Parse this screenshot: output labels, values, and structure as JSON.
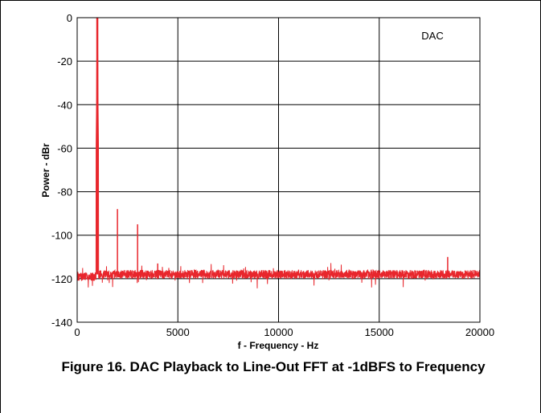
{
  "figure_caption": "Figure 16. DAC Playback to Line-Out FFT at -1dBFS to Frequency",
  "chart_data": {
    "type": "line",
    "title": "",
    "xlabel": "f - Frequency - Hz",
    "ylabel": "Power - dBr",
    "xlim": [
      0,
      20000
    ],
    "ylim": [
      -140,
      0
    ],
    "x_ticks": [
      0,
      5000,
      10000,
      15000,
      20000
    ],
    "y_ticks": [
      0,
      -20,
      -40,
      -60,
      -80,
      -100,
      -120,
      -140
    ],
    "grid": true,
    "annotation": "DAC",
    "series_color": "#e8262c",
    "noise_floor_dbr": -118,
    "peaks": [
      {
        "x": 1000,
        "y": 0
      },
      {
        "x": 2000,
        "y": -88
      },
      {
        "x": 3000,
        "y": -95
      },
      {
        "x": 4000,
        "y": -113
      },
      {
        "x": 18400,
        "y": -110
      }
    ],
    "series": [
      {
        "values": []
      }
    ]
  }
}
